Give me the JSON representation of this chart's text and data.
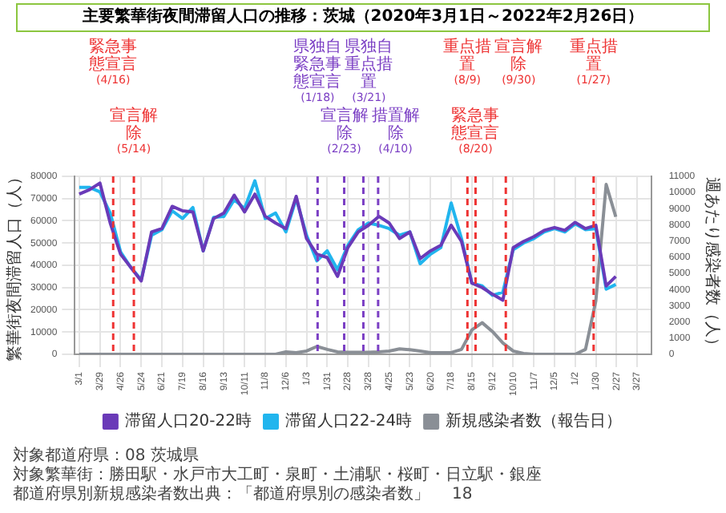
{
  "chart_data": {
    "type": "line",
    "title": "主要繁華街夜間滞留人口の推移：茨城（2020年3月1日～2022年2月26日）",
    "ylabel": "繁華街夜間滞留人口（人）",
    "y2label": "週あたり感染者数（人）",
    "x": [
      "2020-03-01",
      "2020-03-15",
      "2020-03-29",
      "2020-04-12",
      "2020-04-26",
      "2020-05-10",
      "2020-05-24",
      "2020-06-07",
      "2020-06-21",
      "2020-07-05",
      "2020-07-19",
      "2020-08-02",
      "2020-08-16",
      "2020-08-30",
      "2020-09-13",
      "2020-09-27",
      "2020-10-11",
      "2020-10-25",
      "2020-11-08",
      "2020-11-22",
      "2020-12-06",
      "2020-12-20",
      "2021-01-03",
      "2021-01-17",
      "2021-01-31",
      "2021-02-14",
      "2021-02-28",
      "2021-03-14",
      "2021-03-28",
      "2021-04-11",
      "2021-04-25",
      "2021-05-09",
      "2021-05-23",
      "2021-06-06",
      "2021-06-20",
      "2021-07-04",
      "2021-07-18",
      "2021-08-01",
      "2021-08-15",
      "2021-08-29",
      "2021-09-12",
      "2021-09-26",
      "2021-10-10",
      "2021-10-24",
      "2021-11-07",
      "2021-11-21",
      "2021-12-05",
      "2021-12-19",
      "2022-01-02",
      "2022-01-16",
      "2022-01-30",
      "2022-02-13",
      "2022-02-26"
    ],
    "series": [
      {
        "name": "滞留人口20-22時",
        "color": "#6a3ab8",
        "values": [
          72000,
          74000,
          77000,
          59000,
          45000,
          39000,
          33000,
          55000,
          56500,
          66500,
          64500,
          64000,
          46500,
          61000,
          63500,
          71500,
          64000,
          72000,
          62000,
          59000,
          56500,
          71000,
          52000,
          45000,
          43500,
          35000,
          48000,
          55000,
          58000,
          62000,
          59000,
          52000,
          55000,
          43000,
          46500,
          49000,
          58000,
          50700,
          32000,
          30000,
          27000,
          24300,
          47900,
          50700,
          52900,
          55700,
          57000,
          55700,
          59300,
          56500,
          58000,
          30700,
          35000
        ]
      },
      {
        "name": "滞留人口22-24時",
        "color": "#21b5ee",
        "values": [
          75000,
          75000,
          73000,
          63500,
          46000,
          39000,
          33500,
          53500,
          56000,
          64500,
          61000,
          66000,
          46500,
          61500,
          62000,
          69500,
          65500,
          78000,
          61000,
          63500,
          55000,
          70000,
          53500,
          42000,
          46500,
          38000,
          49000,
          56000,
          59000,
          58000,
          56500,
          53500,
          55000,
          40700,
          45000,
          48000,
          68000,
          52000,
          32000,
          30700,
          26500,
          27900,
          47000,
          50000,
          52000,
          55000,
          56500,
          55000,
          58600,
          56000,
          56500,
          29300,
          31400
        ]
      },
      {
        "name": "新規感染者数（報告日）",
        "color": "#8a8f96",
        "axis": "y2",
        "values": [
          0,
          0,
          0,
          0,
          0,
          0,
          0,
          0,
          0,
          0,
          0,
          0,
          0,
          0,
          0,
          0,
          0,
          0,
          0,
          0,
          150,
          100,
          200,
          480,
          300,
          150,
          120,
          120,
          120,
          150,
          200,
          330,
          280,
          200,
          100,
          100,
          100,
          300,
          1500,
          1950,
          1400,
          700,
          200,
          50,
          0,
          0,
          0,
          0,
          0,
          300,
          3300,
          10500,
          8500
        ]
      }
    ],
    "xlim": [
      "2020-02-24",
      "2022-04-15"
    ],
    "xticks": [
      {
        "value": "2020-03-01",
        "label": "3/1"
      },
      {
        "value": "2020-03-29",
        "label": "3/29"
      },
      {
        "value": "2020-04-26",
        "label": "4/26"
      },
      {
        "value": "2020-05-24",
        "label": "5/24"
      },
      {
        "value": "2020-06-21",
        "label": "6/21"
      },
      {
        "value": "2020-07-19",
        "label": "7/19"
      },
      {
        "value": "2020-08-16",
        "label": "8/16"
      },
      {
        "value": "2020-09-13",
        "label": "9/13"
      },
      {
        "value": "2020-10-11",
        "label": "10/11"
      },
      {
        "value": "2020-11-08",
        "label": "11/8"
      },
      {
        "value": "2020-12-06",
        "label": "12/6"
      },
      {
        "value": "2021-01-03",
        "label": "1/3"
      },
      {
        "value": "2021-01-31",
        "label": "1/31"
      },
      {
        "value": "2021-02-28",
        "label": "2/28"
      },
      {
        "value": "2021-03-28",
        "label": "3/28"
      },
      {
        "value": "2021-04-25",
        "label": "4/25"
      },
      {
        "value": "2021-05-23",
        "label": "5/23"
      },
      {
        "value": "2021-06-20",
        "label": "6/20"
      },
      {
        "value": "2021-07-18",
        "label": "7/18"
      },
      {
        "value": "2021-08-15",
        "label": "8/15"
      },
      {
        "value": "2021-09-12",
        "label": "9/12"
      },
      {
        "value": "2021-10-10",
        "label": "10/10"
      },
      {
        "value": "2021-11-07",
        "label": "11/7"
      },
      {
        "value": "2021-12-05",
        "label": "12/5"
      },
      {
        "value": "2022-01-02",
        "label": "1/2"
      },
      {
        "value": "2022-01-30",
        "label": "1/30"
      },
      {
        "value": "2022-02-27",
        "label": "2/27"
      },
      {
        "value": "2022-03-27",
        "label": "3/27"
      }
    ],
    "ylim": [
      0,
      80000
    ],
    "yticks": [
      0,
      10000,
      20000,
      30000,
      40000,
      50000,
      60000,
      70000,
      80000
    ],
    "y2lim": [
      0,
      11000
    ],
    "y2ticks": [
      0,
      1000,
      2000,
      3000,
      4000,
      5000,
      6000,
      7000,
      8000,
      9000,
      10000,
      11000
    ],
    "ref_lines": [
      {
        "axis": "x",
        "value": "2020-04-16",
        "label": "緊急事態宣言(4/16)",
        "color": "#ee3333",
        "line_style": "dashed"
      },
      {
        "axis": "x",
        "value": "2020-05-14",
        "label": "宣言解除(5/14)",
        "color": "#ee3333",
        "line_style": "dashed"
      },
      {
        "axis": "x",
        "value": "2021-01-18",
        "label": "県独自緊急事態宣言(1/18)",
        "color": "#7b3fc4",
        "line_style": "dashed"
      },
      {
        "axis": "x",
        "value": "2021-02-23",
        "label": "宣言解除(2/23)",
        "color": "#7b3fc4",
        "line_style": "dashed"
      },
      {
        "axis": "x",
        "value": "2021-03-21",
        "label": "県独自重点措置(3/21)",
        "color": "#7b3fc4",
        "line_style": "dashed"
      },
      {
        "axis": "x",
        "value": "2021-04-10",
        "label": "措置解除(4/10)",
        "color": "#7b3fc4",
        "line_style": "dashed"
      },
      {
        "axis": "x",
        "value": "2021-08-09",
        "label": "重点措置(8/9)",
        "color": "#ee3333",
        "line_style": "dashed"
      },
      {
        "axis": "x",
        "value": "2021-08-20",
        "label": "緊急事態宣言(8/20)",
        "color": "#ee3333",
        "line_style": "dashed"
      },
      {
        "axis": "x",
        "value": "2021-09-30",
        "label": "宣言解除(9/30)",
        "color": "#ee3333",
        "line_style": "dashed"
      },
      {
        "axis": "x",
        "value": "2022-01-27",
        "label": "重点措置(1/27)",
        "color": "#ee3333",
        "line_style": "dashed"
      }
    ],
    "annotations": [
      "対象都道府県：08 茨城県",
      "対象繁華街：勝田駅・水戸市大工町・泉町・土浦駅・桜町・日立駅・銀座",
      "都道府県別新規感染者数出典：「都道府県別の感染者数」",
      "18"
    ],
    "grid": true,
    "legend": "bottom",
    "marker": "none",
    "line_style": "solid"
  }
}
